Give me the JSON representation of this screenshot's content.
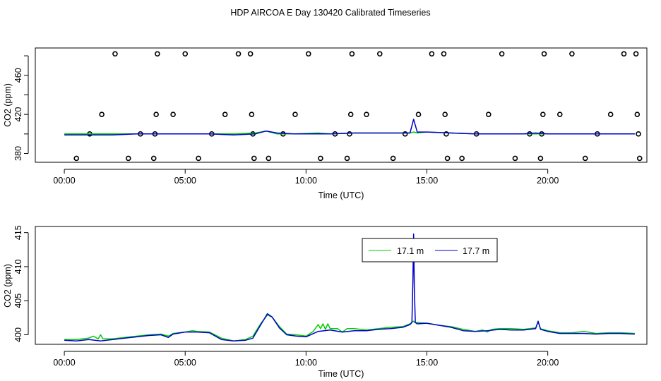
{
  "title": "HDP AIRCOA E  Day 130420  Calibrated Timeseries",
  "colors": {
    "green": "#00cc00",
    "blue": "#0000cc",
    "axis": "#000000"
  },
  "chart_data": [
    {
      "type": "scatter",
      "name": "top-panel",
      "xlabel": "Time (UTC)",
      "ylabel": "CO2 (ppm)",
      "xlim": [
        -1.2,
        24.1
      ],
      "ylim": [
        371,
        488
      ],
      "xticks": [
        0,
        5,
        10,
        15,
        20
      ],
      "xtick_labels": [
        "00:00",
        "05:00",
        "10:00",
        "15:00",
        "20:00"
      ],
      "yticks": [
        380,
        400,
        420,
        440,
        460,
        480
      ],
      "ytick_labels": [
        "380",
        "",
        "420",
        "",
        "460",
        ""
      ],
      "points": [
        [
          0.5,
          375
        ],
        [
          1.05,
          400
        ],
        [
          1.55,
          420
        ],
        [
          2.1,
          482
        ],
        [
          2.65,
          375
        ],
        [
          3.15,
          400
        ],
        [
          3.7,
          375
        ],
        [
          3.75,
          400
        ],
        [
          3.8,
          420
        ],
        [
          3.85,
          482
        ],
        [
          4.5,
          420
        ],
        [
          5.0,
          482
        ],
        [
          5.55,
          375
        ],
        [
          6.1,
          400
        ],
        [
          6.65,
          420
        ],
        [
          7.2,
          482
        ],
        [
          7.7,
          482
        ],
        [
          7.75,
          420
        ],
        [
          7.8,
          400
        ],
        [
          7.85,
          375
        ],
        [
          8.45,
          375
        ],
        [
          9.05,
          400
        ],
        [
          9.55,
          420
        ],
        [
          10.1,
          482
        ],
        [
          10.6,
          375
        ],
        [
          11.2,
          400
        ],
        [
          11.7,
          375
        ],
        [
          11.8,
          400
        ],
        [
          11.85,
          420
        ],
        [
          11.9,
          482
        ],
        [
          12.5,
          420
        ],
        [
          13.05,
          482
        ],
        [
          13.6,
          375
        ],
        [
          14.1,
          400
        ],
        [
          14.65,
          420
        ],
        [
          15.2,
          482
        ],
        [
          15.7,
          482
        ],
        [
          15.75,
          420
        ],
        [
          15.8,
          400
        ],
        [
          15.85,
          375
        ],
        [
          16.45,
          375
        ],
        [
          17.05,
          400
        ],
        [
          17.55,
          420
        ],
        [
          18.1,
          482
        ],
        [
          18.65,
          375
        ],
        [
          19.25,
          400
        ],
        [
          19.7,
          375
        ],
        [
          19.75,
          400
        ],
        [
          19.8,
          420
        ],
        [
          19.85,
          482
        ],
        [
          20.5,
          420
        ],
        [
          21.0,
          482
        ],
        [
          21.55,
          375
        ],
        [
          22.05,
          400
        ],
        [
          22.6,
          420
        ],
        [
          23.15,
          482
        ],
        [
          23.65,
          482
        ],
        [
          23.7,
          420
        ],
        [
          23.75,
          400
        ],
        [
          23.8,
          375
        ]
      ],
      "series": [
        {
          "name": "17.1 m",
          "color": "#00cc00",
          "x": [
            0,
            1,
            2,
            3,
            4,
            5,
            6,
            7,
            7.9,
            8.35,
            8.8,
            9.5,
            10.5,
            11,
            12,
            13,
            14,
            14.3,
            14.45,
            14.6,
            15,
            16,
            17,
            18,
            19,
            19.5,
            20,
            21,
            22,
            23,
            23.6
          ],
          "y": [
            400,
            400,
            400,
            400,
            400,
            400,
            400,
            400,
            401,
            403,
            400,
            400,
            401,
            400,
            401,
            401,
            401,
            401,
            402,
            401,
            402,
            401,
            400,
            400,
            400,
            400,
            400,
            400,
            400,
            400,
            400
          ]
        },
        {
          "name": "17.7 m",
          "color": "#0000cc",
          "x": [
            0,
            1,
            2,
            3,
            4,
            5,
            6,
            7,
            7.9,
            8.35,
            8.8,
            9.5,
            10.5,
            11,
            12,
            13,
            14,
            14.3,
            14.45,
            14.6,
            15,
            16,
            17,
            18,
            19,
            19.5,
            20,
            21,
            22,
            23,
            23.6
          ],
          "y": [
            399,
            399,
            399,
            400,
            400,
            400,
            400,
            399,
            400,
            403,
            401,
            400,
            400,
            400,
            401,
            401,
            401,
            401,
            415,
            402,
            402,
            401,
            400,
            400,
            400,
            401,
            400,
            400,
            400,
            400,
            400
          ]
        }
      ]
    },
    {
      "type": "line",
      "name": "bottom-panel",
      "xlabel": "Time (UTC)",
      "ylabel": "CO2 (ppm)",
      "xlim": [
        -1.2,
        24.1
      ],
      "ylim": [
        398.6,
        415.9
      ],
      "xticks": [
        0,
        5,
        10,
        15,
        20
      ],
      "xtick_labels": [
        "00:00",
        "05:00",
        "10:00",
        "15:00",
        "20:00"
      ],
      "yticks": [
        400,
        405,
        410,
        415
      ],
      "ytick_labels": [
        "400",
        "405",
        "410",
        "415"
      ],
      "legend": {
        "position": "top-right",
        "entries": [
          "17.1 m",
          "17.7 m"
        ]
      },
      "series": [
        {
          "name": "17.1 m",
          "color": "#00cc00",
          "x": [
            0,
            0.5,
            1,
            1.2,
            1.4,
            1.5,
            1.6,
            2,
            2.5,
            3,
            3.5,
            4,
            4.3,
            4.5,
            5,
            5.3,
            5.5,
            6,
            6.5,
            7,
            7.5,
            7.8,
            8.1,
            8.4,
            8.6,
            8.9,
            9.2,
            9.6,
            10,
            10.3,
            10.5,
            10.6,
            10.7,
            10.8,
            10.9,
            11,
            11.3,
            11.5,
            11.7,
            12,
            12.5,
            13,
            13.5,
            14,
            14.3,
            14.4,
            14.45,
            14.5,
            14.6,
            15,
            15.5,
            16,
            16.5,
            17,
            17.3,
            17.5,
            17.7,
            18,
            18.5,
            19,
            19.5,
            19.6,
            19.7,
            20,
            20.5,
            21,
            21.5,
            22,
            22.5,
            23,
            23.6
          ],
          "y": [
            399.3,
            399.3,
            399.5,
            399.8,
            399.4,
            400,
            399.4,
            399.4,
            399.6,
            399.8,
            400,
            400.1,
            399.8,
            400.2,
            400.4,
            400.6,
            400.5,
            400.4,
            399.5,
            399.1,
            399.3,
            399.8,
            401.5,
            402.9,
            402.6,
            401.2,
            400.1,
            400,
            399.8,
            400.5,
            401.5,
            400.9,
            401.6,
            400.8,
            401.6,
            400.9,
            400.9,
            400.4,
            400.9,
            400.9,
            400.7,
            400.9,
            401.1,
            401.2,
            401.6,
            401.9,
            402,
            401.8,
            401.8,
            401.7,
            401.4,
            401.2,
            400.8,
            400.5,
            400.7,
            400.4,
            400.8,
            400.9,
            400.9,
            400.8,
            401,
            401.9,
            400.9,
            400.6,
            400.3,
            400.3,
            400.5,
            400.2,
            400.3,
            400.3,
            400.2
          ]
        },
        {
          "name": "17.7 m",
          "color": "#0000cc",
          "x": [
            0,
            0.5,
            1,
            1.5,
            2,
            2.5,
            3,
            3.5,
            4,
            4.3,
            4.5,
            5,
            5.5,
            6,
            6.5,
            7,
            7.5,
            7.8,
            8.1,
            8.4,
            8.6,
            8.9,
            9.2,
            9.6,
            10,
            10.5,
            11,
            11.5,
            12,
            12.5,
            13,
            13.5,
            14,
            14.3,
            14.38,
            14.42,
            14.45,
            14.48,
            14.52,
            14.6,
            15,
            15.5,
            16,
            16.5,
            17,
            17.5,
            18,
            18.5,
            19,
            19.5,
            19.6,
            19.7,
            20,
            20.5,
            21,
            21.5,
            22,
            22.5,
            23,
            23.6
          ],
          "y": [
            399.2,
            399.1,
            399.3,
            399.1,
            399.3,
            399.5,
            399.7,
            399.9,
            400,
            399.6,
            400.1,
            400.4,
            400.4,
            400.3,
            399.3,
            399.1,
            399.2,
            399.5,
            401.3,
            403.1,
            402.6,
            401,
            400,
            399.8,
            399.7,
            400.5,
            400.7,
            400.4,
            400.6,
            400.6,
            400.8,
            400.9,
            401.1,
            401.5,
            401.8,
            408,
            414.8,
            407,
            401.8,
            401.6,
            401.7,
            401.4,
            401.1,
            400.6,
            400.5,
            400.6,
            400.8,
            400.7,
            400.7,
            400.9,
            402,
            400.8,
            400.5,
            400.2,
            400.2,
            400.2,
            400.1,
            400.2,
            400.2,
            400.1
          ]
        }
      ]
    }
  ]
}
